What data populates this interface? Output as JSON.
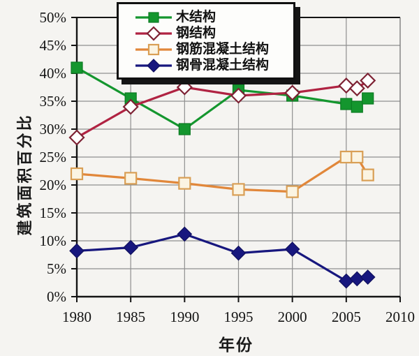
{
  "page": {
    "background": "#f5f4f1"
  },
  "chart_data": {
    "type": "line",
    "title": "",
    "xlabel": "年份",
    "ylabel": "建筑面积百分比",
    "xlim": [
      1980,
      2010
    ],
    "ylim": [
      0,
      50
    ],
    "grid": true,
    "grid_color": "#8f8f8f",
    "axis_color": "#141414",
    "legend_position": "top-inside",
    "x_tick_values": [
      1980,
      1985,
      1990,
      1995,
      2000,
      2005,
      2010
    ],
    "x_tick_labels": [
      "1980",
      "1985",
      "1990",
      "1995",
      "2000",
      "2005",
      "2010"
    ],
    "y_tick_values": [
      0,
      5,
      10,
      15,
      20,
      25,
      30,
      35,
      40,
      45,
      50
    ],
    "y_tick_labels": [
      "0%",
      "5%",
      "10%",
      "15%",
      "20%",
      "25%",
      "30%",
      "35%",
      "40%",
      "45%",
      "50%"
    ],
    "x": [
      1980,
      1985,
      1990,
      1995,
      2000,
      2005,
      2006,
      2007
    ],
    "series": [
      {
        "name": "木结构",
        "color": "#14962e",
        "marker": "square-filled",
        "marker_fill": "#14962e",
        "marker_stroke": "#0b7a22",
        "values": [
          41,
          35.5,
          30,
          37,
          36,
          34.5,
          34,
          35.5
        ]
      },
      {
        "name": "钢结构",
        "color": "#b02342",
        "marker": "diamond-open",
        "marker_fill": "#ffffff",
        "marker_stroke": "#7d2133",
        "values": [
          28.5,
          34,
          37.5,
          36,
          36.5,
          37.8,
          37.3,
          38.7
        ]
      },
      {
        "name": "钢筋混凝土结构",
        "color": "#e1873a",
        "marker": "square-open",
        "marker_fill": "#fbf4e2",
        "marker_stroke": "#d99f55",
        "values": [
          22,
          21.2,
          20.3,
          19.2,
          18.8,
          25,
          25,
          21.8
        ]
      },
      {
        "name": "钢骨混凝土结构",
        "color": "#17177e",
        "marker": "diamond-filled",
        "marker_fill": "#17177e",
        "marker_stroke": "#10105e",
        "values": [
          8.2,
          8.8,
          11.2,
          7.8,
          8.5,
          2.8,
          3.2,
          3.5
        ]
      }
    ]
  }
}
